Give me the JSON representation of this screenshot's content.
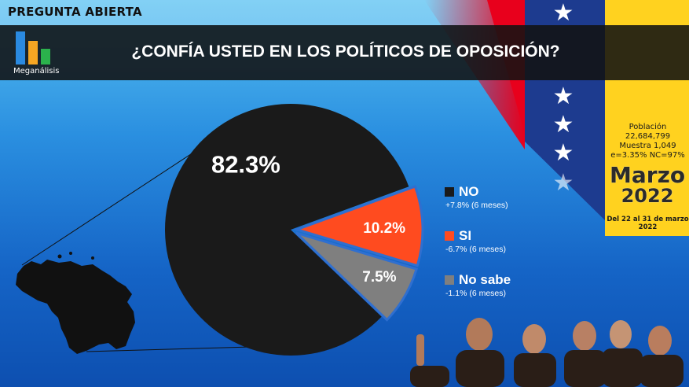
{
  "header": {
    "tag": "PREGUNTA ABIERTA",
    "title": "¿CONFÍA USTED EN LOS POLÍTICOS DE OPOSICIÓN?"
  },
  "brand": {
    "logo_text": "Meganálisis"
  },
  "info": {
    "poblacion_label": "Población",
    "poblacion_value": "22,684,799",
    "muestra": "Muestra 1,049",
    "error": "e=3.35%  NC=97%",
    "month": "Marzo",
    "year": "2022",
    "dates": "Del 22 al 31 de marzo 2022"
  },
  "colors": {
    "no": "#1a1a1a",
    "si": "#ff4b1f",
    "nosabe": "#7f7f7f",
    "flag_yellow": "#ffd21f",
    "flag_blue": "#1d3b8f",
    "flag_red": "#e8001c",
    "background": "#1565c4"
  },
  "chart_data": {
    "type": "pie",
    "title": "¿CONFÍA USTED EN LOS POLÍTICOS DE OPOSICIÓN?",
    "slices": [
      {
        "label": "NO",
        "value": 82.3,
        "value_label": "82.3%",
        "change": "+7.8% (6 meses)",
        "color": "#1a1a1a"
      },
      {
        "label": "SI",
        "value": 10.2,
        "value_label": "10.2%",
        "change": "-6.7% (6 meses)",
        "color": "#ff4b1f"
      },
      {
        "label": "No sabe",
        "value": 7.5,
        "value_label": "7.5%",
        "change": "-1.1% (6 meses)",
        "color": "#7f7f7f"
      }
    ],
    "legend_position": "right"
  }
}
